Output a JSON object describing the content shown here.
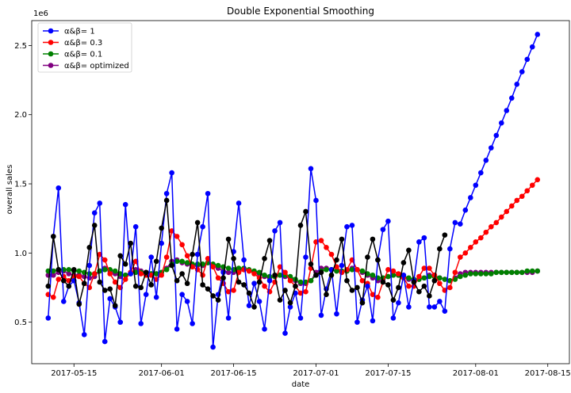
{
  "chart_data": {
    "type": "line",
    "title": "Double Exponential Smoothing",
    "xlabel": "date",
    "ylabel": "overall sales",
    "y_multiplier_label": "1e6",
    "y_tick_values": [
      0.5,
      1.0,
      1.5,
      2.0,
      2.5
    ],
    "y_tick_labels": [
      "0.5",
      "1.0",
      "1.5",
      "2.0",
      "2.5"
    ],
    "ylim": [
      0.2,
      2.68
    ],
    "x_tick_labels": [
      "2017-05-15",
      "2017-06-01",
      "2017-06-15",
      "2017-07-01",
      "2017-07-15",
      "2017-08-01",
      "2017-08-15"
    ],
    "x_tick_days": [
      5,
      22,
      36,
      52,
      66,
      83,
      97
    ],
    "xlim_days": [
      -3.2,
      101.2
    ],
    "legend_position": "upper-left",
    "actual_color": "#000000",
    "actual": [
      0.76,
      1.12,
      0.88,
      0.8,
      0.76,
      0.88,
      0.63,
      0.78,
      1.04,
      1.2,
      0.79,
      0.73,
      0.74,
      0.62,
      0.98,
      0.92,
      1.07,
      0.76,
      0.75,
      0.86,
      0.77,
      0.94,
      1.18,
      1.38,
      0.91,
      0.8,
      0.85,
      0.78,
      0.99,
      1.22,
      0.77,
      0.74,
      0.69,
      0.66,
      0.82,
      1.1,
      0.96,
      0.79,
      0.77,
      0.71,
      0.61,
      0.79,
      0.96,
      1.09,
      0.84,
      0.66,
      0.73,
      0.64,
      0.76,
      1.2,
      1.3,
      0.92,
      0.84,
      0.86,
      0.7,
      0.84,
      0.95,
      1.1,
      0.8,
      0.73,
      0.75,
      0.64,
      0.97,
      1.1,
      0.95,
      0.79,
      0.77,
      0.66,
      0.75,
      0.93,
      1.02,
      0.79,
      0.72,
      0.76,
      0.69,
      0.8,
      1.03,
      1.13
    ],
    "forecast_start_day": 81,
    "series": [
      {
        "name": "α&β= 1",
        "color": "#0000ff",
        "values": [
          0.53,
          1.12,
          1.47,
          0.65,
          0.76,
          0.8,
          0.64,
          0.41,
          0.91,
          1.29,
          1.36,
          0.36,
          0.67,
          0.61,
          0.5,
          1.35,
          0.85,
          1.19,
          0.49,
          0.7,
          0.97,
          0.68,
          1.07,
          1.43,
          1.58,
          0.45,
          0.7,
          0.65,
          0.49,
          0.99,
          1.19,
          1.43,
          0.32,
          0.7,
          0.86,
          0.53,
          1.01,
          1.36,
          0.95,
          0.62,
          0.78,
          0.65,
          0.45,
          0.8,
          1.16,
          1.22,
          0.42,
          0.61,
          0.71,
          0.53,
          0.97,
          1.61,
          1.38,
          0.55,
          0.74,
          0.88,
          0.56,
          0.91,
          1.19,
          1.2,
          0.5,
          0.66,
          0.76,
          0.51,
          0.95,
          1.17,
          1.23,
          0.53,
          0.64,
          0.84,
          0.61,
          0.8,
          1.08,
          1.11,
          0.61,
          0.61,
          0.65,
          0.58,
          1.03,
          1.22,
          1.21,
          1.31,
          1.4,
          1.49,
          1.58,
          1.67,
          1.76,
          1.85,
          1.94,
          2.03,
          2.12,
          2.22,
          2.31,
          2.4,
          2.49,
          2.58
        ]
      },
      {
        "name": "α&β= 0.3",
        "color": "#ff0000",
        "values": [
          0.7,
          0.68,
          0.81,
          0.83,
          0.8,
          0.83,
          0.83,
          0.78,
          0.75,
          0.85,
          0.99,
          0.95,
          0.85,
          0.79,
          0.75,
          0.81,
          0.86,
          0.94,
          0.85,
          0.84,
          0.84,
          0.81,
          0.84,
          0.97,
          1.16,
          1.12,
          1.06,
          0.98,
          0.9,
          0.88,
          0.84,
          0.96,
          0.9,
          0.82,
          0.78,
          0.72,
          0.73,
          0.86,
          0.88,
          0.87,
          0.85,
          0.82,
          0.76,
          0.72,
          0.79,
          0.9,
          0.86,
          0.8,
          0.76,
          0.71,
          0.72,
          0.89,
          1.08,
          1.09,
          1.04,
          0.99,
          0.9,
          0.86,
          0.88,
          0.95,
          0.88,
          0.8,
          0.78,
          0.7,
          0.68,
          0.79,
          0.88,
          0.87,
          0.85,
          0.82,
          0.76,
          0.76,
          0.83,
          0.89,
          0.89,
          0.84,
          0.78,
          0.73,
          0.75,
          0.86,
          0.97,
          1.0,
          1.04,
          1.08,
          1.11,
          1.15,
          1.19,
          1.22,
          1.26,
          1.3,
          1.34,
          1.38,
          1.41,
          1.45,
          1.49,
          1.53
        ]
      },
      {
        "name": "α&β= 0.1",
        "color": "#008000",
        "values": [
          0.87,
          0.87,
          0.88,
          0.88,
          0.88,
          0.87,
          0.87,
          0.86,
          0.85,
          0.85,
          0.87,
          0.88,
          0.88,
          0.87,
          0.85,
          0.84,
          0.85,
          0.86,
          0.86,
          0.85,
          0.85,
          0.85,
          0.86,
          0.88,
          0.92,
          0.94,
          0.94,
          0.93,
          0.92,
          0.92,
          0.92,
          0.93,
          0.92,
          0.91,
          0.9,
          0.89,
          0.88,
          0.89,
          0.89,
          0.88,
          0.87,
          0.86,
          0.84,
          0.83,
          0.83,
          0.84,
          0.84,
          0.83,
          0.81,
          0.79,
          0.79,
          0.8,
          0.84,
          0.87,
          0.88,
          0.88,
          0.87,
          0.87,
          0.87,
          0.88,
          0.88,
          0.87,
          0.85,
          0.84,
          0.82,
          0.82,
          0.83,
          0.84,
          0.84,
          0.83,
          0.82,
          0.81,
          0.81,
          0.82,
          0.83,
          0.83,
          0.82,
          0.81,
          0.8,
          0.81,
          0.83,
          0.84,
          0.85,
          0.85,
          0.85,
          0.85,
          0.85,
          0.86,
          0.86,
          0.86,
          0.86,
          0.86,
          0.86,
          0.87,
          0.87,
          0.87
        ]
      },
      {
        "name": "α&β= optimized",
        "color": "#800080",
        "values": [
          0.84,
          0.84,
          0.86,
          0.87,
          0.85,
          0.84,
          0.84,
          0.83,
          0.82,
          0.83,
          0.87,
          0.89,
          0.87,
          0.85,
          0.83,
          0.84,
          0.86,
          0.88,
          0.87,
          0.86,
          0.85,
          0.85,
          0.86,
          0.89,
          0.94,
          0.95,
          0.93,
          0.92,
          0.91,
          0.91,
          0.91,
          0.93,
          0.91,
          0.89,
          0.87,
          0.86,
          0.86,
          0.88,
          0.88,
          0.87,
          0.86,
          0.85,
          0.83,
          0.82,
          0.83,
          0.84,
          0.83,
          0.82,
          0.8,
          0.78,
          0.78,
          0.8,
          0.86,
          0.89,
          0.89,
          0.88,
          0.87,
          0.86,
          0.87,
          0.89,
          0.88,
          0.86,
          0.84,
          0.82,
          0.8,
          0.81,
          0.83,
          0.84,
          0.84,
          0.83,
          0.81,
          0.8,
          0.81,
          0.82,
          0.84,
          0.84,
          0.82,
          0.81,
          0.8,
          0.82,
          0.85,
          0.86,
          0.86,
          0.86,
          0.86,
          0.86,
          0.86,
          0.86,
          0.86,
          0.86,
          0.86,
          0.86,
          0.86,
          0.86,
          0.86,
          0.87
        ]
      }
    ]
  }
}
